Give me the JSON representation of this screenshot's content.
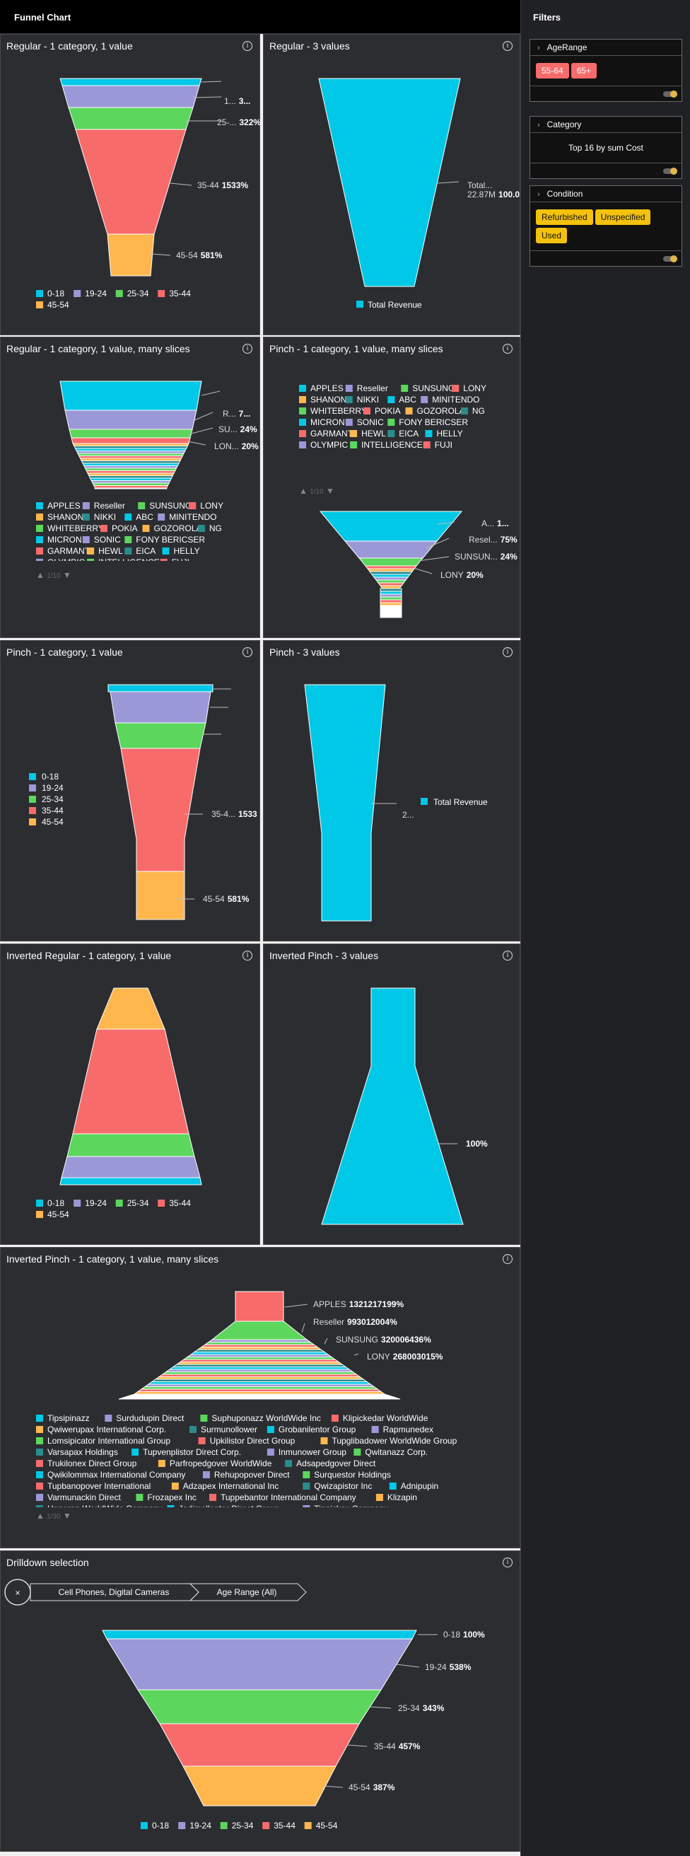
{
  "app_title": "Funnel Chart",
  "sidebar": {
    "title": "Filters",
    "filters": [
      {
        "title": "AgeRange",
        "chips": [
          "55-64",
          "65+"
        ],
        "chip_style": "red"
      },
      {
        "title": "Category",
        "summary": "Top 16 by sum Cost"
      },
      {
        "title": "Condition",
        "chips": [
          "Refurbished",
          "Unspecified",
          "Used"
        ],
        "chip_style": "yel"
      }
    ]
  },
  "colors": {
    "c0": "#00c8e6",
    "c1": "#9b98d8",
    "c2": "#5cd65c",
    "c3": "#f76b6b",
    "c4": "#ffb64d",
    "c5": "#2a8c8c",
    "bg": "#2b2d31"
  },
  "icons": {
    "info": "i",
    "close": "×",
    "chevron": "›",
    "pager_up": "▲",
    "pager_down": "▼"
  },
  "age_series": [
    "0-18",
    "19-24",
    "25-34",
    "35-44",
    "45-54"
  ],
  "brands": [
    "APPLES",
    "Reseller",
    "SUNSUNG",
    "LONY",
    "SHANON",
    "NIKKI",
    "ABC",
    "MINITENDO",
    "WHITEBERRY",
    "POKIA",
    "GOZOROLA",
    "NG",
    "MICRON",
    "SONIC",
    "FONY BERICSER",
    "GARMANT",
    "HEWL",
    "EICA",
    "HELLY",
    "OLYMPIC",
    "INTELLIGENCE",
    "FUJI"
  ],
  "companies": [
    "Tipsipinazz",
    "Surdudupin Direct",
    "Suphuponazz WorldWide Inc",
    "Klipickedar WorldWide",
    "Qwiwerupax International Corp.",
    "Surmunollower",
    "Grobanilentor Group",
    "Rapmunedex",
    "Lomsipicator International Group",
    "Upkilistor Direct Group",
    "Tupglibadower WorldWide Group",
    "Varsapax Holdings",
    "Tupvenplistor Direct Corp.",
    "Inmunower Group",
    "Qwitanazz Corp.",
    "Trukilonex Direct Group",
    "Parfropedgover WorldWide",
    "Adsapedgover Direct",
    "Qwikilommax International Company",
    "Rehupopover Direct",
    "Surquestor Holdings",
    "Tupbanopover International",
    "Adzapex International Inc",
    "Qwizapistor Inc",
    "Adnipupin",
    "Varmunackin Direct",
    "Frozapex Inc",
    "Tuppebantor International Company",
    "Klizapin",
    "Hanoran WorldWide Company",
    "Jadimollentor Direct Group",
    "Tipnickax Company"
  ],
  "charts": [
    {
      "title": "Regular - 1 category, 1 value",
      "labels": [
        {
          "name": "1...",
          "value": "3..."
        },
        {
          "name": "25-...",
          "value": "322%"
        },
        {
          "name": "35-44",
          "value": "1533%"
        },
        {
          "name": "45-54",
          "value": "581%"
        }
      ]
    },
    {
      "title": "Regular - 3 values",
      "labels": [
        {
          "name": "Total...",
          "value": "22.87M",
          "pct": "100.0"
        }
      ],
      "legend": "Total Revenue"
    },
    {
      "title": "Regular - 1 category, 1 value, many slices",
      "labels": [
        {
          "name": "R...",
          "value": "7..."
        },
        {
          "name": "SU...",
          "value": "24%"
        },
        {
          "name": "LON...",
          "value": "20%"
        }
      ],
      "pager": "1/10"
    },
    {
      "title": "Pinch - 1 category, 1 value, many slices",
      "labels": [
        {
          "name": "A...",
          "value": "1..."
        },
        {
          "name": "Resel...",
          "value": "75%"
        },
        {
          "name": "SUNSUN...",
          "value": "24%"
        },
        {
          "name": "LONY",
          "value": "20%"
        }
      ],
      "pager": "1/10"
    },
    {
      "title": "Pinch - 1 category, 1 value",
      "labels": [
        {
          "name": "35-4...",
          "value": "1533"
        },
        {
          "name": "45-54",
          "value": "581%"
        }
      ]
    },
    {
      "title": "Pinch - 3 values",
      "labels": [
        {
          "name": "2...",
          "value": ""
        }
      ],
      "legend": "Total Revenue"
    },
    {
      "title": "Inverted Regular - 1 category, 1 value"
    },
    {
      "title": "Inverted Pinch - 3 values",
      "labels": [
        {
          "name": "",
          "value": "100%"
        }
      ]
    },
    {
      "title": "Inverted Pinch - 1 category, 1 value, many slices",
      "labels": [
        {
          "name": "APPLES",
          "value": "1321217199%"
        },
        {
          "name": "Reseller",
          "value": "993012004%"
        },
        {
          "name": "SUNSUNG",
          "value": "320006436%"
        },
        {
          "name": "LONY",
          "value": "268003015%"
        }
      ],
      "pager": "1/30"
    },
    {
      "title": "Drilldown selection",
      "breadcrumbs": [
        "Cell Phones, Digital Cameras",
        "Age Range (All)"
      ],
      "labels": [
        {
          "name": "0-18",
          "value": "100%"
        },
        {
          "name": "19-24",
          "value": "538%"
        },
        {
          "name": "25-34",
          "value": "343%"
        },
        {
          "name": "35-44",
          "value": "457%"
        },
        {
          "name": "45-54",
          "value": "387%"
        }
      ]
    }
  ]
}
